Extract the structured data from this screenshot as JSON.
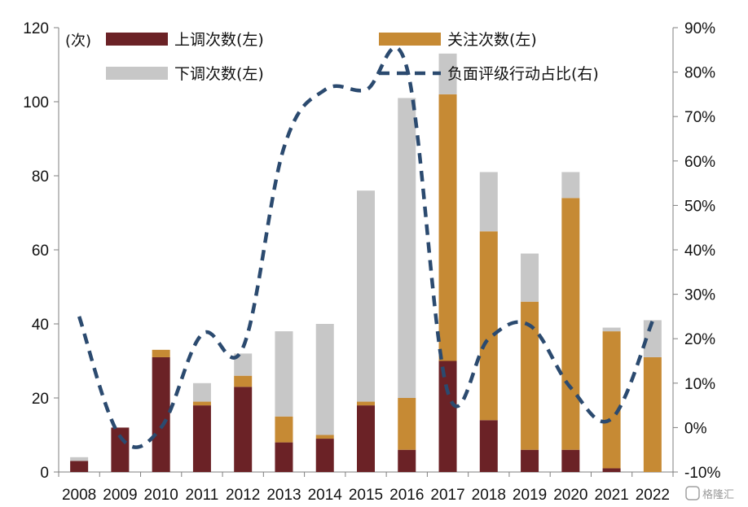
{
  "chart_data": {
    "type": "bar",
    "categories": [
      "2008",
      "2009",
      "2010",
      "2011",
      "2012",
      "2013",
      "2014",
      "2015",
      "2016",
      "2017",
      "2018",
      "2019",
      "2020",
      "2021",
      "2022"
    ],
    "series": [
      {
        "name": "上调次数(左)",
        "kind": "stacked-bar",
        "axis": "left",
        "color": "#6b2226",
        "values": [
          3,
          12,
          31,
          18,
          23,
          8,
          9,
          18,
          6,
          30,
          14,
          6,
          6,
          1,
          0
        ]
      },
      {
        "name": "关注次数(左)",
        "kind": "stacked-bar",
        "axis": "left",
        "color": "#c68a34",
        "values": [
          0,
          0,
          2,
          1,
          3,
          7,
          1,
          1,
          14,
          72,
          51,
          40,
          68,
          37,
          31
        ]
      },
      {
        "name": "下调次数(左)",
        "kind": "stacked-bar",
        "axis": "left",
        "color": "#c7c7c7",
        "values": [
          1,
          0,
          0,
          5,
          6,
          23,
          30,
          57,
          81,
          11,
          16,
          13,
          7,
          1,
          10
        ]
      },
      {
        "name": "负面评级行动占比(右)",
        "kind": "line",
        "axis": "right",
        "color": "#2b4a6f",
        "style": "dashed",
        "values": [
          25,
          -2,
          0,
          21,
          18,
          63,
          76,
          76,
          81,
          8,
          20,
          23,
          9,
          2,
          24
        ]
      }
    ],
    "left_axis": {
      "unit": "(次)",
      "ylim": [
        0,
        120
      ],
      "ticks": [
        "0",
        "20",
        "40",
        "60",
        "80",
        "100",
        "120"
      ]
    },
    "right_axis": {
      "ylim": [
        -10,
        90
      ],
      "ticks": [
        "-10%",
        "0%",
        "10%",
        "20%",
        "30%",
        "40%",
        "50%",
        "60%",
        "70%",
        "80%",
        "90%"
      ]
    },
    "legend": {
      "position": "top",
      "entries": [
        "上调次数(左)",
        "关注次数(左)",
        "下调次数(左)",
        "负面评级行动占比(右)"
      ]
    },
    "grid": false
  },
  "watermark": "格隆汇"
}
